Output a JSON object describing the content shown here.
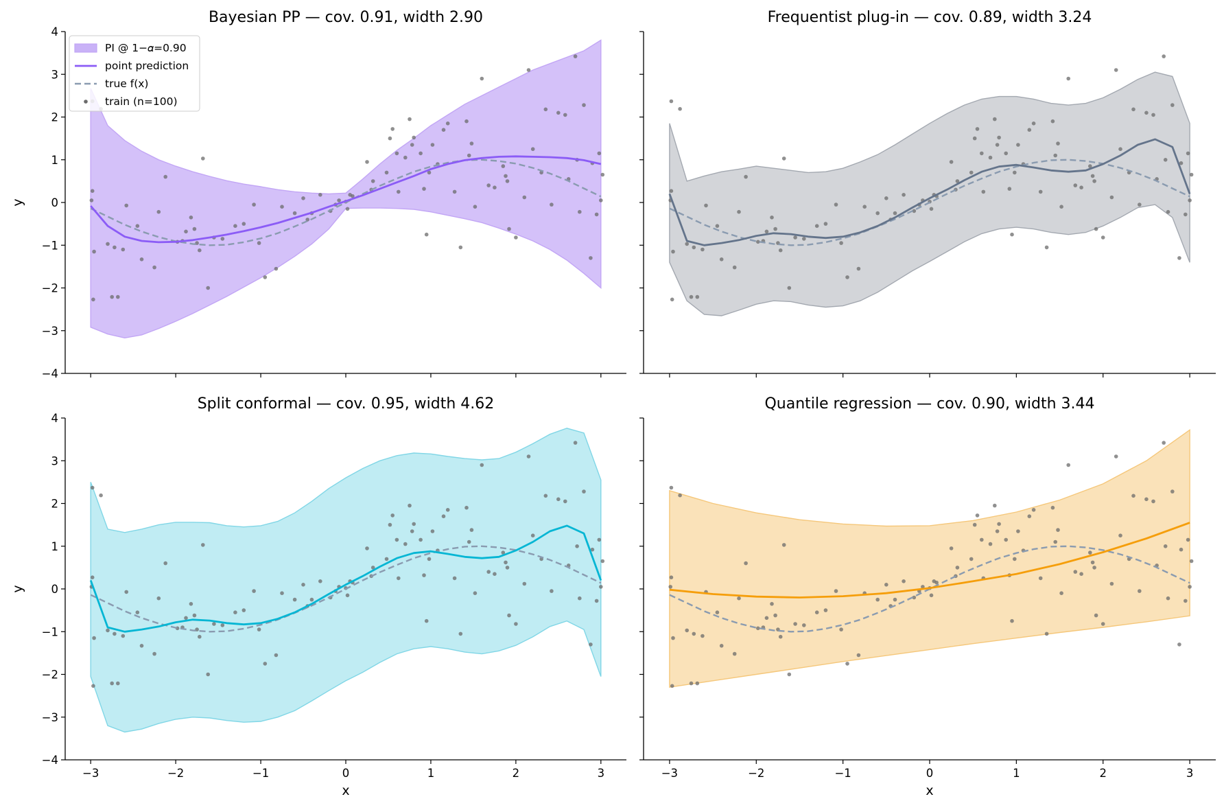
{
  "chart_data": [
    {
      "type": "line",
      "title": "Bayesian PP — cov. 0.91, width 2.90",
      "xlabel": "",
      "ylabel": "y",
      "xlim": [
        -3.3,
        3.3
      ],
      "ylim": [
        -4,
        4
      ],
      "xticks": [
        -3,
        -2,
        -1,
        0,
        1,
        2,
        3
      ],
      "yticks": [
        -4,
        -3,
        -2,
        -1,
        0,
        1,
        2,
        3,
        4
      ],
      "show_xtick_labels": false,
      "show_ytick_labels": true,
      "grid": false,
      "color": "#8b5cf6",
      "band_fill": "#c9b2f7",
      "band_edge": "#c2a6f5",
      "x": [
        -3.0,
        -2.8,
        -2.6,
        -2.4,
        -2.2,
        -2.0,
        -1.8,
        -1.6,
        -1.4,
        -1.2,
        -1.0,
        -0.8,
        -0.6,
        -0.4,
        -0.2,
        0.0,
        0.2,
        0.4,
        0.6,
        0.8,
        1.0,
        1.2,
        1.4,
        1.6,
        1.8,
        2.0,
        2.2,
        2.4,
        2.6,
        2.8,
        3.0
      ],
      "prediction": [
        -0.08,
        -0.55,
        -0.8,
        -0.9,
        -0.93,
        -0.92,
        -0.88,
        -0.82,
        -0.75,
        -0.67,
        -0.58,
        -0.48,
        -0.36,
        -0.24,
        -0.1,
        0.03,
        0.17,
        0.32,
        0.47,
        0.62,
        0.78,
        0.9,
        0.99,
        1.04,
        1.07,
        1.08,
        1.07,
        1.06,
        1.04,
        0.99,
        0.9
      ],
      "lower": [
        -2.92,
        -3.08,
        -3.17,
        -3.1,
        -2.95,
        -2.78,
        -2.6,
        -2.4,
        -2.2,
        -1.98,
        -1.76,
        -1.52,
        -1.26,
        -0.97,
        -0.62,
        -0.14,
        -0.13,
        -0.13,
        -0.14,
        -0.16,
        -0.22,
        -0.3,
        -0.38,
        -0.47,
        -0.6,
        -0.74,
        -0.9,
        -1.1,
        -1.35,
        -1.66,
        -2.0
      ],
      "upper": [
        2.67,
        1.8,
        1.45,
        1.2,
        1.0,
        0.85,
        0.72,
        0.61,
        0.51,
        0.43,
        0.37,
        0.3,
        0.25,
        0.22,
        0.2,
        0.22,
        0.55,
        0.9,
        1.22,
        1.5,
        1.8,
        2.05,
        2.3,
        2.5,
        2.7,
        2.9,
        3.1,
        3.25,
        3.4,
        3.55,
        3.8
      ],
      "legend": {
        "placement": "top-left",
        "entries": [
          {
            "label": "PI @ 1−𝛼=0.90",
            "kind": "band"
          },
          {
            "label": "point prediction",
            "kind": "line"
          },
          {
            "label": "true f(x)",
            "kind": "dashed"
          },
          {
            "label": "train (n=100)",
            "kind": "points"
          }
        ]
      }
    },
    {
      "type": "line",
      "title": "Frequentist plug-in — cov. 0.89, width 3.24",
      "xlabel": "",
      "ylabel": "",
      "xlim": [
        -3.3,
        3.3
      ],
      "ylim": [
        -4,
        4
      ],
      "xticks": [
        -3,
        -2,
        -1,
        0,
        1,
        2,
        3
      ],
      "yticks": [
        -4,
        -3,
        -2,
        -1,
        0,
        1,
        2,
        3,
        4
      ],
      "show_xtick_labels": false,
      "show_ytick_labels": false,
      "grid": false,
      "color": "#64748b",
      "band_fill": "#c8cacf",
      "band_edge": "#a3a8b0",
      "x": [
        -3.0,
        -2.8,
        -2.6,
        -2.4,
        -2.2,
        -2.0,
        -1.8,
        -1.6,
        -1.4,
        -1.2,
        -1.0,
        -0.8,
        -0.6,
        -0.4,
        -0.2,
        0.0,
        0.2,
        0.4,
        0.6,
        0.8,
        1.0,
        1.2,
        1.4,
        1.6,
        1.8,
        2.0,
        2.2,
        2.4,
        2.6,
        2.8,
        3.0
      ],
      "prediction": [
        0.2,
        -0.9,
        -1.0,
        -0.95,
        -0.88,
        -0.78,
        -0.72,
        -0.74,
        -0.8,
        -0.83,
        -0.8,
        -0.7,
        -0.55,
        -0.35,
        -0.12,
        0.1,
        0.3,
        0.52,
        0.72,
        0.84,
        0.88,
        0.82,
        0.75,
        0.72,
        0.75,
        0.9,
        1.1,
        1.35,
        1.48,
        1.3,
        0.2
      ],
      "lower": [
        -1.4,
        -2.3,
        -2.62,
        -2.65,
        -2.52,
        -2.38,
        -2.3,
        -2.32,
        -2.4,
        -2.45,
        -2.42,
        -2.3,
        -2.1,
        -1.85,
        -1.6,
        -1.38,
        -1.15,
        -0.92,
        -0.73,
        -0.62,
        -0.58,
        -0.62,
        -0.7,
        -0.75,
        -0.7,
        -0.55,
        -0.35,
        -0.12,
        -0.05,
        -0.35,
        -1.4
      ],
      "upper": [
        1.85,
        0.5,
        0.62,
        0.72,
        0.78,
        0.85,
        0.8,
        0.75,
        0.7,
        0.72,
        0.8,
        0.95,
        1.12,
        1.35,
        1.6,
        1.85,
        2.08,
        2.28,
        2.42,
        2.48,
        2.48,
        2.42,
        2.32,
        2.28,
        2.32,
        2.45,
        2.65,
        2.88,
        3.05,
        2.95,
        1.85
      ],
      "legend": null
    },
    {
      "type": "line",
      "title": "Split conformal — cov. 0.95, width 4.62",
      "xlabel": "x",
      "ylabel": "y",
      "xlim": [
        -3.3,
        3.3
      ],
      "ylim": [
        -4,
        4
      ],
      "xticks": [
        -3,
        -2,
        -1,
        0,
        1,
        2,
        3
      ],
      "yticks": [
        -4,
        -3,
        -2,
        -1,
        0,
        1,
        2,
        3,
        4
      ],
      "show_xtick_labels": true,
      "show_ytick_labels": true,
      "grid": false,
      "color": "#06b6d4",
      "band_fill": "#b0e7f0",
      "band_edge": "#80d6e6",
      "x": [
        -3.0,
        -2.8,
        -2.6,
        -2.4,
        -2.2,
        -2.0,
        -1.8,
        -1.6,
        -1.4,
        -1.2,
        -1.0,
        -0.8,
        -0.6,
        -0.4,
        -0.2,
        0.0,
        0.2,
        0.4,
        0.6,
        0.8,
        1.0,
        1.2,
        1.4,
        1.6,
        1.8,
        2.0,
        2.2,
        2.4,
        2.6,
        2.8,
        3.0
      ],
      "prediction": [
        0.2,
        -0.9,
        -1.0,
        -0.95,
        -0.88,
        -0.78,
        -0.72,
        -0.74,
        -0.8,
        -0.83,
        -0.8,
        -0.7,
        -0.55,
        -0.35,
        -0.12,
        0.1,
        0.3,
        0.52,
        0.72,
        0.84,
        0.88,
        0.82,
        0.75,
        0.72,
        0.75,
        0.9,
        1.1,
        1.35,
        1.48,
        1.3,
        0.2
      ],
      "lower": [
        -2.05,
        -3.2,
        -3.35,
        -3.28,
        -3.15,
        -3.05,
        -3.0,
        -3.02,
        -3.08,
        -3.12,
        -3.1,
        -3.0,
        -2.85,
        -2.62,
        -2.38,
        -2.15,
        -1.95,
        -1.72,
        -1.52,
        -1.4,
        -1.35,
        -1.4,
        -1.48,
        -1.52,
        -1.45,
        -1.32,
        -1.12,
        -0.88,
        -0.75,
        -0.95,
        -2.05
      ],
      "upper": [
        2.5,
        1.4,
        1.32,
        1.4,
        1.5,
        1.56,
        1.56,
        1.55,
        1.48,
        1.45,
        1.48,
        1.58,
        1.78,
        2.05,
        2.35,
        2.6,
        2.82,
        3.0,
        3.12,
        3.18,
        3.16,
        3.1,
        3.05,
        3.02,
        3.05,
        3.2,
        3.4,
        3.62,
        3.76,
        3.65,
        2.55
      ],
      "legend": null
    },
    {
      "type": "line",
      "title": "Quantile regression — cov. 0.90, width 3.44",
      "xlabel": "x",
      "ylabel": "",
      "xlim": [
        -3.3,
        3.3
      ],
      "ylim": [
        -4,
        4
      ],
      "xticks": [
        -3,
        -2,
        -1,
        0,
        1,
        2,
        3
      ],
      "yticks": [
        -4,
        -3,
        -2,
        -1,
        0,
        1,
        2,
        3,
        4
      ],
      "show_xtick_labels": true,
      "show_ytick_labels": false,
      "grid": false,
      "color": "#f59e0b",
      "band_fill": "#f9dba8",
      "band_edge": "#f5c77a",
      "x": [
        -3.0,
        -2.5,
        -2.0,
        -1.5,
        -1.0,
        -0.5,
        0.0,
        0.5,
        1.0,
        1.5,
        2.0,
        2.5,
        3.0
      ],
      "prediction": [
        -0.02,
        -0.12,
        -0.18,
        -0.2,
        -0.17,
        -0.1,
        0.02,
        0.18,
        0.35,
        0.58,
        0.86,
        1.18,
        1.55
      ],
      "lower": [
        -2.3,
        -2.15,
        -2.0,
        -1.85,
        -1.7,
        -1.56,
        -1.42,
        -1.28,
        -1.15,
        -1.02,
        -0.9,
        -0.77,
        -0.63
      ],
      "upper": [
        2.3,
        2.0,
        1.78,
        1.62,
        1.52,
        1.47,
        1.48,
        1.6,
        1.8,
        2.08,
        2.46,
        3.0,
        3.72
      ],
      "legend": null
    }
  ],
  "true_function": {
    "label": "true f(x)",
    "color": "#8a9bb0",
    "x": [
      -3.0,
      -2.8,
      -2.6,
      -2.4,
      -2.2,
      -2.0,
      -1.8,
      -1.6,
      -1.4,
      -1.2,
      -1.0,
      -0.8,
      -0.6,
      -0.4,
      -0.2,
      0.0,
      0.2,
      0.4,
      0.6,
      0.8,
      1.0,
      1.2,
      1.4,
      1.6,
      1.8,
      2.0,
      2.2,
      2.4,
      2.6,
      2.8,
      3.0
    ],
    "y": [
      -0.14,
      -0.33,
      -0.52,
      -0.68,
      -0.81,
      -0.91,
      -0.97,
      -1.0,
      -0.99,
      -0.93,
      -0.84,
      -0.72,
      -0.56,
      -0.39,
      -0.2,
      0.0,
      0.2,
      0.39,
      0.56,
      0.72,
      0.84,
      0.93,
      0.99,
      1.0,
      0.97,
      0.91,
      0.81,
      0.68,
      0.52,
      0.33,
      0.14
    ]
  },
  "train_points": {
    "label": "train (n=100)",
    "color": "#6b6b6b",
    "x": [
      -2.99,
      -2.98,
      -2.98,
      -2.97,
      -2.96,
      -2.88,
      -2.8,
      -2.75,
      -2.72,
      -2.68,
      -2.62,
      -2.58,
      -2.45,
      -2.4,
      -2.25,
      -2.2,
      -2.12,
      -1.98,
      -1.92,
      -1.88,
      -1.82,
      -1.78,
      -1.75,
      -1.72,
      -1.68,
      -1.62,
      -1.55,
      -1.45,
      -1.3,
      -1.2,
      -1.08,
      -1.02,
      -0.95,
      -0.82,
      -0.75,
      -0.6,
      -0.5,
      -0.45,
      -0.4,
      -0.3,
      -0.18,
      -0.12,
      -0.08,
      0.0,
      0.02,
      0.05,
      0.08,
      0.25,
      0.3,
      0.32,
      0.48,
      0.52,
      0.55,
      0.6,
      0.62,
      0.7,
      0.75,
      0.78,
      0.8,
      0.88,
      0.92,
      0.95,
      0.98,
      1.02,
      1.08,
      1.15,
      1.2,
      1.28,
      1.35,
      1.42,
      1.45,
      1.48,
      1.52,
      1.6,
      1.68,
      1.75,
      1.85,
      1.88,
      1.9,
      1.92,
      2.0,
      2.1,
      2.15,
      2.2,
      2.3,
      2.35,
      2.42,
      2.5,
      2.58,
      2.62,
      2.7,
      2.72,
      2.75,
      2.8,
      2.88,
      2.95,
      2.98,
      3.0,
      3.02,
      2.9
    ],
    "y": [
      0.05,
      0.27,
      2.37,
      -2.27,
      -1.15,
      2.19,
      -0.97,
      -2.21,
      -1.05,
      -2.21,
      -1.1,
      -0.07,
      -0.55,
      -1.33,
      -1.52,
      -0.22,
      0.6,
      -0.92,
      -0.9,
      -0.68,
      -0.35,
      -0.62,
      -0.95,
      -1.12,
      1.03,
      -2.0,
      -0.82,
      -0.85,
      -0.55,
      -0.5,
      -0.05,
      -0.95,
      -1.75,
      -1.55,
      -0.1,
      -0.25,
      0.1,
      -0.4,
      -0.25,
      0.18,
      -0.2,
      -0.05,
      0.05,
      0.02,
      -0.15,
      0.18,
      0.15,
      0.95,
      0.3,
      0.5,
      0.7,
      1.5,
      1.72,
      1.15,
      0.25,
      1.05,
      1.95,
      1.35,
      1.52,
      1.15,
      0.32,
      -0.75,
      0.7,
      1.35,
      0.9,
      1.7,
      1.85,
      0.25,
      -1.05,
      1.9,
      1.1,
      1.38,
      -0.1,
      2.9,
      0.4,
      0.35,
      0.85,
      0.62,
      0.5,
      -0.62,
      -0.82,
      0.12,
      3.1,
      1.25,
      0.7,
      2.18,
      -0.05,
      2.1,
      2.05,
      0.55,
      3.42,
      1.0,
      -0.22,
      2.28,
      -1.3,
      -0.28,
      1.15,
      0.05,
      0.65,
      0.92
    ]
  }
}
